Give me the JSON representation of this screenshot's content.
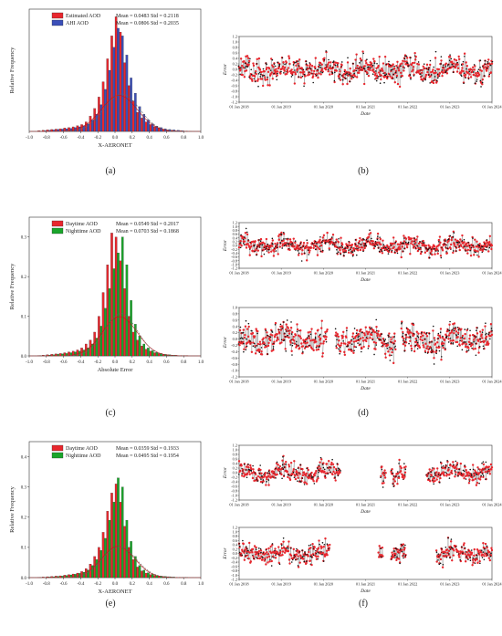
{
  "panel_labels": [
    "(a)",
    "(b)",
    "(c)",
    "(d)",
    "(e)",
    "(f)"
  ],
  "chart_data": [
    {
      "id": "a",
      "type": "bar",
      "xlabel": "X-AERONET",
      "ylabel": "Relative Frequency",
      "xlim": [
        -1.0,
        1.0
      ],
      "ylim": [
        0,
        0.32
      ],
      "xticks": [
        "-1.0",
        "-0.8",
        "-0.6",
        "-0.4",
        "-0.2",
        "0.0",
        "0.2",
        "0.4",
        "0.6",
        "0.8",
        "1.0"
      ],
      "yticks": [],
      "bin_width": 0.05,
      "bin_centers": [
        -0.875,
        -0.825,
        -0.775,
        -0.725,
        -0.675,
        -0.625,
        -0.575,
        -0.525,
        -0.475,
        -0.425,
        -0.375,
        -0.325,
        -0.275,
        -0.225,
        -0.175,
        -0.125,
        -0.075,
        -0.025,
        0.025,
        0.075,
        0.125,
        0.175,
        0.225,
        0.275,
        0.325,
        0.375,
        0.425,
        0.475,
        0.525,
        0.575,
        0.625,
        0.675,
        0.725,
        0.775,
        0.825
      ],
      "series": [
        {
          "name": "Estimated AOD",
          "color": "#e8272e",
          "stats": "Mean = 0.0483    Std = 0.2118",
          "values": [
            0.002,
            0.003,
            0.004,
            0.005,
            0.006,
            0.007,
            0.009,
            0.01,
            0.012,
            0.015,
            0.018,
            0.025,
            0.04,
            0.06,
            0.09,
            0.13,
            0.19,
            0.25,
            0.3,
            0.26,
            0.18,
            0.12,
            0.08,
            0.05,
            0.035,
            0.025,
            0.018,
            0.012,
            0.009,
            0.006,
            0.004,
            0.003,
            0.002,
            0.002,
            0.001
          ]
        },
        {
          "name": "AHI AOD",
          "color": "#3b4fb8",
          "stats": "Mean = 0.0806    Std = 0.2035",
          "values": [
            0.001,
            0.002,
            0.003,
            0.004,
            0.005,
            0.006,
            0.007,
            0.008,
            0.01,
            0.012,
            0.015,
            0.02,
            0.03,
            0.045,
            0.07,
            0.11,
            0.16,
            0.22,
            0.27,
            0.25,
            0.2,
            0.14,
            0.1,
            0.065,
            0.045,
            0.03,
            0.02,
            0.014,
            0.01,
            0.007,
            0.005,
            0.004,
            0.003,
            0.002,
            0.001
          ]
        }
      ],
      "fit_curves": true
    },
    {
      "id": "b",
      "type": "scatter",
      "xlabel": "Date",
      "ylabel": "Error",
      "xticks": [
        "01 Jan 2018",
        "01 Jan 2019",
        "01 Jan 2020",
        "01 Jan 2021",
        "01 Jan 2022",
        "01 Jan 2023",
        "01 Jan 2024"
      ],
      "yticks": [
        "-1.2",
        "-1.0",
        "-0.8",
        "-0.6",
        "-0.4",
        "-0.2",
        "0.0",
        "0.2",
        "0.4",
        "0.6",
        "0.8",
        "1.0",
        "1.2"
      ],
      "ylim": [
        -1.2,
        1.2
      ],
      "xlim": [
        "2018-01-01",
        "2024-01-01"
      ],
      "gaps": [],
      "point_colors": [
        "#e8272e",
        "#111111"
      ]
    },
    {
      "id": "c",
      "type": "bar",
      "xlabel": "Absolute Error",
      "ylabel": "Relative Frequency",
      "xlim": [
        -1.0,
        1.0
      ],
      "ylim": [
        0,
        0.35
      ],
      "xticks": [
        "-1.0",
        "-0.8",
        "-0.6",
        "-0.4",
        "-0.2",
        "0.0",
        "0.2",
        "0.4",
        "0.6",
        "0.8",
        "1.0"
      ],
      "yticks": [
        "0.0",
        "0.1",
        "0.2",
        "0.3"
      ],
      "bin_width": 0.05,
      "bin_centers": [
        -0.875,
        -0.825,
        -0.775,
        -0.725,
        -0.675,
        -0.625,
        -0.575,
        -0.525,
        -0.475,
        -0.425,
        -0.375,
        -0.325,
        -0.275,
        -0.225,
        -0.175,
        -0.125,
        -0.075,
        -0.025,
        0.025,
        0.075,
        0.125,
        0.175,
        0.225,
        0.275,
        0.325,
        0.375,
        0.425,
        0.475,
        0.525,
        0.575,
        0.625,
        0.675,
        0.725,
        0.775,
        0.825
      ],
      "series": [
        {
          "name": "Daytime AOD",
          "color": "#e8272e",
          "stats": "Mean = 0.0549    Std = 0.2017",
          "values": [
            0.001,
            0.002,
            0.003,
            0.004,
            0.005,
            0.006,
            0.008,
            0.01,
            0.012,
            0.015,
            0.02,
            0.03,
            0.04,
            0.06,
            0.1,
            0.16,
            0.23,
            0.31,
            0.3,
            0.24,
            0.17,
            0.1,
            0.06,
            0.04,
            0.025,
            0.017,
            0.012,
            0.008,
            0.006,
            0.004,
            0.003,
            0.002,
            0.002,
            0.001,
            0.001
          ]
        },
        {
          "name": "Nighttime AOD",
          "color": "#1aa52b",
          "stats": "Mean = 0.0703    Std = 0.1868",
          "values": [
            0.001,
            0.001,
            0.002,
            0.003,
            0.004,
            0.005,
            0.006,
            0.008,
            0.01,
            0.012,
            0.015,
            0.02,
            0.03,
            0.045,
            0.075,
            0.12,
            0.17,
            0.22,
            0.26,
            0.3,
            0.23,
            0.14,
            0.08,
            0.05,
            0.03,
            0.02,
            0.013,
            0.009,
            0.006,
            0.004,
            0.003,
            0.002,
            0.001,
            0.001,
            0.001
          ]
        }
      ],
      "fit_curves": true
    },
    {
      "id": "d",
      "type": "scatter",
      "xlabel": "Date",
      "ylabel": "Error",
      "xticks": [
        "01 Jan 2018",
        "01 Jan 2019",
        "01 Jan 2020",
        "01 Jan 2021",
        "01 Jan 2022",
        "01 Jan 2023",
        "01 Jan 2024"
      ],
      "yticks": [
        "-1.2",
        "-1.0",
        "-0.8",
        "-0.6",
        "-0.4",
        "-0.2",
        "0.0",
        "0.2",
        "0.4",
        "0.6",
        "0.8",
        "1.0",
        "1.2"
      ],
      "ylim": [
        -1.2,
        1.2
      ],
      "xlim": [
        "2018-01-01",
        "2024-01-01"
      ],
      "point_colors": [
        "#e8272e",
        "#111111"
      ]
    },
    {
      "id": "d2",
      "type": "scatter",
      "xlabel": "Date",
      "ylabel": "Error",
      "xticks": [
        "01 Jan 2018",
        "01 Jan 2019",
        "01 Jan 2020",
        "01 Jan 2021",
        "01 Jan 2022",
        "01 Jan 2023",
        "01 Jan 2024"
      ],
      "yticks": [
        "-1.2",
        "-1.0",
        "-0.8",
        "-0.6",
        "-0.4",
        "-0.2",
        "0.0",
        "0.2",
        "0.4",
        "0.6",
        "0.8",
        "1.0"
      ],
      "ylim": [
        -1.2,
        1.0
      ],
      "xlim": [
        "2018-01-01",
        "2024-01-01"
      ],
      "point_colors": [
        "#e8272e",
        "#111111"
      ]
    },
    {
      "id": "e",
      "type": "bar",
      "xlabel": "X-AERONET",
      "ylabel": "Relative Frequency",
      "xlim": [
        -1.0,
        1.0
      ],
      "ylim": [
        0,
        0.45
      ],
      "xticks": [
        "-1.0",
        "-0.8",
        "-0.6",
        "-0.4",
        "-0.2",
        "0.0",
        "0.2",
        "0.4",
        "0.6",
        "0.8",
        "1.0"
      ],
      "yticks": [
        "0.0",
        "0.1",
        "0.2",
        "0.3",
        "0.4"
      ],
      "bin_width": 0.05,
      "bin_centers": [
        -0.875,
        -0.825,
        -0.775,
        -0.725,
        -0.675,
        -0.625,
        -0.575,
        -0.525,
        -0.475,
        -0.425,
        -0.375,
        -0.325,
        -0.275,
        -0.225,
        -0.175,
        -0.125,
        -0.075,
        -0.025,
        0.025,
        0.075,
        0.125,
        0.175,
        0.225,
        0.275,
        0.325,
        0.375,
        0.425,
        0.475,
        0.525,
        0.575,
        0.625,
        0.675,
        0.725,
        0.775,
        0.825
      ],
      "series": [
        {
          "name": "Daytime AOD",
          "color": "#e8272e",
          "stats": "Mean = 0.0359    Std = 0.1933",
          "values": [
            0.001,
            0.002,
            0.003,
            0.004,
            0.005,
            0.006,
            0.008,
            0.01,
            0.012,
            0.015,
            0.02,
            0.03,
            0.045,
            0.07,
            0.1,
            0.15,
            0.22,
            0.28,
            0.31,
            0.25,
            0.17,
            0.1,
            0.06,
            0.035,
            0.022,
            0.015,
            0.01,
            0.007,
            0.005,
            0.004,
            0.003,
            0.002,
            0.001,
            0.001,
            0.001
          ]
        },
        {
          "name": "Nighttime AOD",
          "color": "#1aa52b",
          "stats": "Mean = 0.0495    Std = 0.1954",
          "values": [
            0.001,
            0.001,
            0.002,
            0.003,
            0.004,
            0.005,
            0.007,
            0.009,
            0.011,
            0.014,
            0.018,
            0.025,
            0.04,
            0.06,
            0.09,
            0.13,
            0.19,
            0.25,
            0.33,
            0.3,
            0.19,
            0.12,
            0.07,
            0.04,
            0.025,
            0.016,
            0.011,
            0.007,
            0.005,
            0.004,
            0.003,
            0.002,
            0.001,
            0.001,
            0.001
          ]
        }
      ],
      "fit_curves": true
    },
    {
      "id": "f",
      "type": "scatter",
      "xlabel": "Date",
      "ylabel": "Error",
      "xticks": [
        "01 Jan 2018",
        "01 Jan 2019",
        "01 Jan 2020",
        "01 Jan 2021",
        "01 Jan 2022",
        "01 Jan 2023",
        "01 Jan 2024"
      ],
      "yticks": [
        "-1.2",
        "-1.0",
        "-0.8",
        "-0.6",
        "-0.4",
        "-0.2",
        "0.0",
        "0.2",
        "0.4",
        "0.6",
        "0.8",
        "1.0",
        "1.2"
      ],
      "ylim": [
        -1.2,
        1.2
      ],
      "xlim": [
        "2018-01-01",
        "2024-01-01"
      ],
      "point_colors": [
        "#e8272e",
        "#111111"
      ]
    },
    {
      "id": "f2",
      "type": "scatter",
      "xlabel": "Date",
      "ylabel": "Error",
      "xticks": [
        "01 Jan 2018",
        "01 Jan 2019",
        "01 Jan 2020",
        "01 Jan 2021",
        "01 Jan 2022",
        "01 Jan 2023",
        "01 Jan 2024"
      ],
      "yticks": [
        "-1.2",
        "-1.0",
        "-0.8",
        "-0.6",
        "-0.4",
        "-0.2",
        "0.0",
        "0.2",
        "0.4",
        "0.6",
        "0.8",
        "1.0",
        "1.2"
      ],
      "ylim": [
        -1.2,
        1.2
      ],
      "xlim": [
        "2018-01-01",
        "2024-01-01"
      ],
      "point_colors": [
        "#e8272e",
        "#111111"
      ]
    }
  ]
}
